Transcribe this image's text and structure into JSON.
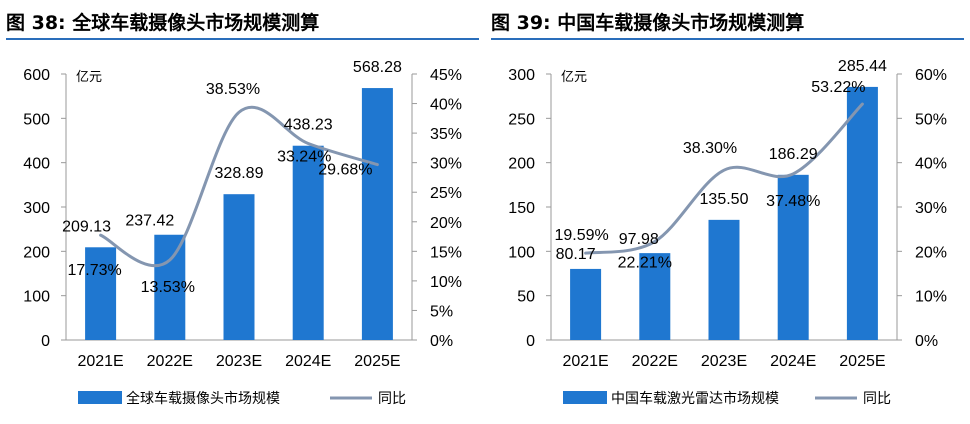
{
  "panels": [
    {
      "title": "图 38:  全球车载摄像头市场规模测算",
      "unit": "亿元",
      "legend_bar": "全球车载摄像头市场规模",
      "legend_line": "同比"
    },
    {
      "title": "图 39:  中国车载摄像头市场规模测算",
      "unit": "亿元",
      "legend_bar": "中国车载激光雷达市场规模",
      "legend_line": "同比"
    }
  ],
  "colors": {
    "bar": "#1f77d0",
    "line": "#8496b0",
    "rule": "#2a6ebb"
  },
  "chart_data": [
    {
      "type": "bar",
      "categories": [
        "2021E",
        "2022E",
        "2023E",
        "2024E",
        "2025E"
      ],
      "series": [
        {
          "name": "全球车载摄像头市场规模",
          "type": "bar",
          "axis": "left",
          "values": [
            209.13,
            237.42,
            328.89,
            438.23,
            568.28
          ],
          "labels": [
            "209.13",
            "237.42",
            "328.89",
            "438.23",
            "568.28"
          ]
        },
        {
          "name": "同比",
          "type": "line",
          "axis": "right",
          "smooth": true,
          "values": [
            17.73,
            13.53,
            38.53,
            33.24,
            29.68
          ],
          "labels": [
            "17.73%",
            "13.53%",
            "38.53%",
            "33.24%",
            "29.68%"
          ]
        }
      ],
      "ylim": [
        0,
        600
      ],
      "yticks": [
        0,
        100,
        200,
        300,
        400,
        500,
        600
      ],
      "yticklabels": [
        "0",
        "100",
        "200",
        "300",
        "400",
        "500",
        "600"
      ],
      "y2lim": [
        0,
        45
      ],
      "y2ticks": [
        0,
        5,
        10,
        15,
        20,
        25,
        30,
        35,
        40,
        45
      ],
      "y2ticklabels": [
        "0%",
        "5%",
        "10%",
        "15%",
        "20%",
        "25%",
        "30%",
        "35%",
        "40%",
        "45%"
      ],
      "legend": "bottom",
      "grid": false
    },
    {
      "type": "bar",
      "categories": [
        "2021E",
        "2022E",
        "2023E",
        "2024E",
        "2025E"
      ],
      "series": [
        {
          "name": "中国车载激光雷达市场规模",
          "type": "bar",
          "axis": "left",
          "values": [
            80.17,
            97.98,
            135.5,
            186.29,
            285.44
          ],
          "labels": [
            "80.17",
            "97.98",
            "135.50",
            "186.29",
            "285.44"
          ]
        },
        {
          "name": "同比",
          "type": "line",
          "axis": "right",
          "smooth": true,
          "values": [
            19.59,
            22.21,
            38.3,
            37.48,
            53.22
          ],
          "labels": [
            "19.59%",
            "22.21%",
            "38.30%",
            "37.48%",
            "53.22%"
          ]
        }
      ],
      "ylim": [
        0,
        300
      ],
      "yticks": [
        0,
        50,
        100,
        150,
        200,
        250,
        300
      ],
      "yticklabels": [
        "0",
        "50",
        "100",
        "150",
        "200",
        "250",
        "300"
      ],
      "y2lim": [
        0,
        60
      ],
      "y2ticks": [
        0,
        10,
        20,
        30,
        40,
        50,
        60
      ],
      "y2ticklabels": [
        "0%",
        "10%",
        "20%",
        "30%",
        "40%",
        "50%",
        "60%"
      ],
      "legend": "bottom",
      "grid": false
    }
  ]
}
